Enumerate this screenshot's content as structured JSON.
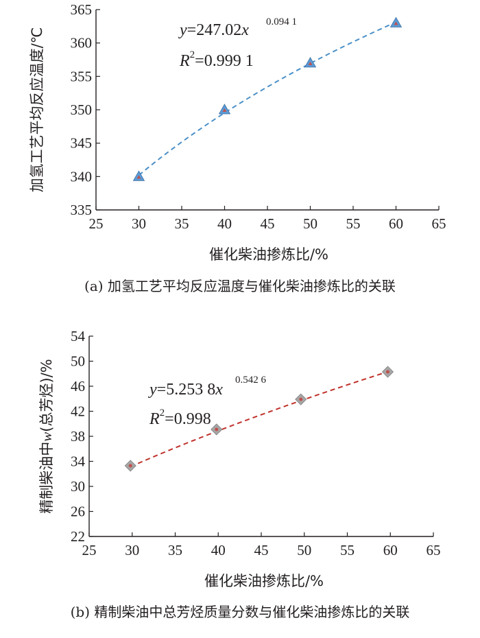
{
  "chart_data": [
    {
      "type": "scatter",
      "caption": "(a) 加氢工艺平均反应温度与催化柴油掺炼比的关联",
      "xlabel": "催化柴油掺炼比/%",
      "ylabel": "加氢工艺平均反应温度/℃",
      "xlim": [
        25,
        65
      ],
      "ylim": [
        335,
        365
      ],
      "xticks": [
        "25",
        "30",
        "35",
        "40",
        "45",
        "50",
        "55",
        "60",
        "65"
      ],
      "yticks": [
        "335",
        "340",
        "345",
        "350",
        "355",
        "360",
        "365"
      ],
      "x": [
        30,
        40,
        50,
        60
      ],
      "y": [
        340,
        350,
        357,
        363
      ],
      "marker": "triangle",
      "marker_color": "#5b9bd5",
      "marker_inner_color": "#c0504d",
      "fit_color": "#4a90c8",
      "fit": {
        "a": 247.02,
        "b": 0.0941
      },
      "equation": {
        "y_var": "y",
        "eq_mid": "=247.02",
        "x_var": "x",
        "exponent": "0.094 1",
        "r_var": "R",
        "r_sup": "2",
        "r_value": "=0.999 1"
      },
      "grid": false
    },
    {
      "type": "scatter",
      "caption": "(b) 精制柴油中总芳烃质量分数与催化柴油掺炼比的关联",
      "xlabel": "催化柴油掺炼比/%",
      "ylabel": "精制柴油中w(总芳烃)/%",
      "ylabel_prefix": "精制柴油中",
      "ylabel_var": "w",
      "ylabel_suffix": "(总芳烃)/%",
      "xlim": [
        25,
        65
      ],
      "ylim": [
        22,
        54
      ],
      "xticks": [
        "25",
        "30",
        "35",
        "40",
        "45",
        "50",
        "55",
        "60",
        "65"
      ],
      "yticks": [
        "22",
        "26",
        "30",
        "34",
        "38",
        "42",
        "46",
        "50",
        "54"
      ],
      "x": [
        29.8,
        39.8,
        49.6,
        59.7
      ],
      "y": [
        33.3,
        39.1,
        43.9,
        48.3
      ],
      "marker": "diamond",
      "marker_color": "#a6a6a6",
      "marker_inner_color": "#c0504d",
      "fit_color": "#c0302a",
      "fit": {
        "a": 5.2538,
        "b": 0.5426
      },
      "equation": {
        "y_var": "y",
        "eq_mid": "=5.253 8",
        "x_var": "x",
        "exponent": "0.542 6",
        "r_var": "R",
        "r_sup": "2",
        "r_value": "=0.998"
      },
      "grid": false
    }
  ]
}
